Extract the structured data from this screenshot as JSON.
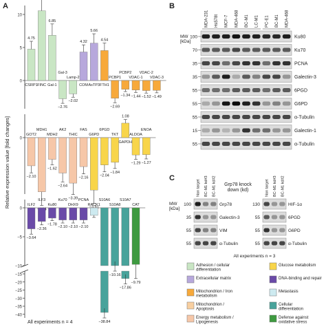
{
  "panels": {
    "a": "A",
    "b": "B",
    "c": "C"
  },
  "colors": {
    "adhesion": "#c9e6c4",
    "ecm": "#b7a8dc",
    "mito_iron": "#f7a93b",
    "mito_apop": "#f8cfa0",
    "energy": "#f6c7a8",
    "glucose": "#f8d54a",
    "dna": "#6a4aa8",
    "metastasis": "#cdeaf0",
    "diff": "#48a39b",
    "defense": "#3e9a40",
    "axis": "#555555"
  },
  "chart_data": {
    "type": "bar",
    "ylabel": "Relative expression value [fold changes]",
    "footnote": "All experiments n = 4",
    "axis_breaks": [
      -10,
      -15
    ],
    "groups": [
      {
        "ylim": [
          -5,
          12
        ],
        "categories": [
          "CSRP1",
          "FINC",
          "Gal-1",
          "Gal-3",
          "Lamp-2",
          "COM",
          "AsTP3",
          "FTH1",
          "PCBP1",
          "PCBP2",
          "VDAC-1",
          "VDAC-2",
          "VDAC-3"
        ],
        "values": [
          4.75,
          10.56,
          6.85,
          -2.76,
          -2.02,
          4.32,
          5.66,
          4.54,
          -2.69,
          -1.34,
          -1.44,
          -1.52,
          -1.49
        ],
        "value_labels": [
          "4.75",
          "10.56",
          "6.85",
          "−2.76",
          "−2.02",
          "4.32",
          "5.66",
          "4.54",
          "−2.69",
          "−1.34",
          "−1.44",
          "−1.52",
          "−1.49"
        ],
        "classes": [
          "adhesion",
          "adhesion",
          "adhesion",
          "adhesion",
          "adhesion",
          "ecm",
          "ecm",
          "mito_iron",
          "mito_iron",
          "mito_iron",
          "mito_iron",
          "mito_iron",
          "mito_iron"
        ]
      },
      {
        "ylim": [
          -5,
          2
        ],
        "categories": [
          "GOT2",
          "MDH1",
          "MDH2",
          "AK2",
          "THIC",
          "FAS",
          "G6PD",
          "6PGD",
          "TKT",
          "GAPDH",
          "ALDOA",
          "ENOA"
        ],
        "values": [
          -2.1,
          -4.04,
          -1.62,
          -2.64,
          -3.39,
          -2.16,
          -3.91,
          -2.04,
          -1.84,
          1.08,
          -1.29,
          -1.27
        ],
        "value_labels": [
          "−2.10",
          "−4.04",
          "−1.62",
          "−2.64",
          "−3.39",
          "−2.16",
          "−3.91",
          "−2.04",
          "−1.84",
          "1.08",
          "−1.29",
          "−1.27"
        ],
        "classes": [
          "energy",
          "energy",
          "energy",
          "energy",
          "energy",
          "energy",
          "glucose",
          "glucose",
          "glucose",
          "glucose",
          "glucose",
          "glucose"
        ]
      },
      {
        "ylim": [
          -40,
          2
        ],
        "categories": [
          "ILF2",
          "ILF3",
          "Ku80",
          "Ku70",
          "DHX9",
          "PCNA",
          "RACK1",
          "S10A6",
          "S10A8",
          "S10A7",
          "CAT"
        ],
        "values": [
          -3.64,
          -2.36,
          -1.78,
          -2.1,
          -2.1,
          -2.1,
          -1.3,
          -38.84,
          -10.16,
          -17.86,
          -9.79
        ],
        "value_labels": [
          "−3.64",
          "−2.36",
          "−1.78",
          "−2.10",
          "−2.10",
          "−2.10",
          "",
          "−38.84",
          "−10.16",
          "−17.86",
          "−9.79"
        ],
        "classes": [
          "dna",
          "dna",
          "dna",
          "dna",
          "dna",
          "dna",
          "metastasis",
          "diff",
          "diff",
          "diff",
          "defense"
        ]
      }
    ]
  },
  "panel_b": {
    "mw_header": "MW\n[kDa]",
    "lanes": [
      "MDA-231",
      "Hs578t",
      "MCF-7",
      "MDA-468",
      "BC-M1",
      "LC-M1",
      "PC-E1",
      "BC-M1",
      "MDA-468"
    ],
    "blots": [
      {
        "mw": "100",
        "label": "Ku80"
      },
      {
        "mw": "70",
        "label": "Ku70"
      },
      {
        "mw": "35",
        "label": "PCNA"
      },
      {
        "mw": "35",
        "label": "Galectin-3"
      },
      {
        "mw": "55",
        "label": "6PGD"
      },
      {
        "mw": "55",
        "label": "G6PD"
      },
      {
        "mw": "55",
        "label": "α-Tubulin"
      },
      {
        "mw": "15",
        "label": "Galectin-1"
      },
      {
        "mw": "55",
        "label": "α-Tubulin"
      }
    ]
  },
  "panel_c": {
    "mw_header": "MW\n[kDa]",
    "title": "Grp78 knock\ndown (kd)",
    "lanes_left": [
      "Non target",
      "BC-M1 kd#3",
      "BC-M1 kd#2"
    ],
    "lanes_right": [
      "Non target",
      "BC-M1 kd#3",
      "BC-M1 kd#2"
    ],
    "left_blots": [
      {
        "mw": "100",
        "label": "Grp78"
      },
      {
        "mw": "35",
        "label": "Galectin-3"
      },
      {
        "mw": "55",
        "label": "VIM"
      },
      {
        "mw": "55",
        "label": "α-Tubulin"
      }
    ],
    "right_blots": [
      {
        "mw": "130",
        "label": "HIF-1α"
      },
      {
        "mw": "55",
        "label": "6PGD"
      },
      {
        "mw": "55",
        "label": "G6PD"
      },
      {
        "mw": "55",
        "label": "α-Tubulin"
      }
    ],
    "footnote": "All experiments n = 3"
  },
  "legend": [
    {
      "key": "adhesion",
      "label": "Adhesion / cellular differentiation"
    },
    {
      "key": "glucose",
      "label": "Glucose metabolism"
    },
    {
      "key": "ecm",
      "label": "Extracellular matrix"
    },
    {
      "key": "dna",
      "label": "DNA-binding and repair"
    },
    {
      "key": "mito_iron",
      "label": "Mitochondrion / Iron metabolism"
    },
    {
      "key": "metastasis",
      "label": "Metastasis"
    },
    {
      "key": "mito_apop",
      "label": "Mitochondrion / Apoptosis"
    },
    {
      "key": "diff",
      "label": "Cellular differentiation"
    },
    {
      "key": "energy",
      "label": "Energy metabolism / Lipogenesis"
    },
    {
      "key": "defense",
      "label": "Defense against oxidative stress"
    }
  ]
}
